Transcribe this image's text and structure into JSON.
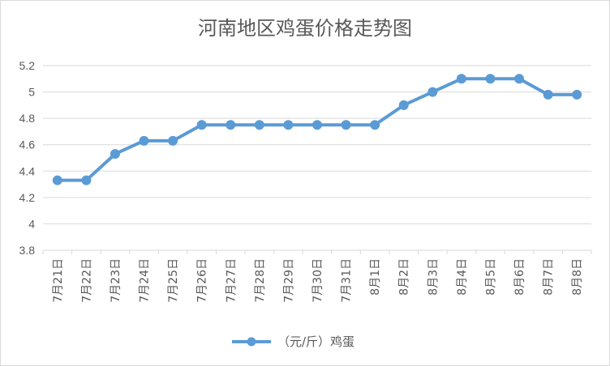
{
  "chart_data": {
    "type": "line",
    "title": "河南地区鸡蛋价格走势图",
    "xlabel": "",
    "ylabel": "",
    "categories": [
      "7月21日",
      "7月22日",
      "7月23日",
      "7月24日",
      "7月25日",
      "7月26日",
      "7月27日",
      "7月28日",
      "7月29日",
      "7月30日",
      "7月31日",
      "8月1日",
      "8月2日",
      "8月3日",
      "8月4日",
      "8月5日",
      "8月6日",
      "8月7日",
      "8月8日"
    ],
    "series": [
      {
        "name": "（元/斤）鸡蛋",
        "values": [
          4.33,
          4.33,
          4.53,
          4.63,
          4.63,
          4.75,
          4.75,
          4.75,
          4.75,
          4.75,
          4.75,
          4.75,
          4.9,
          5.0,
          5.1,
          5.1,
          5.1,
          4.98,
          4.98
        ],
        "color": "#5b9bd5"
      }
    ],
    "ylim": [
      3.8,
      5.2
    ],
    "yticks": [
      "3.8",
      "4",
      "4.2",
      "4.4",
      "4.6",
      "4.8",
      "5",
      "5.2"
    ],
    "grid": true,
    "legend": "bottom"
  }
}
